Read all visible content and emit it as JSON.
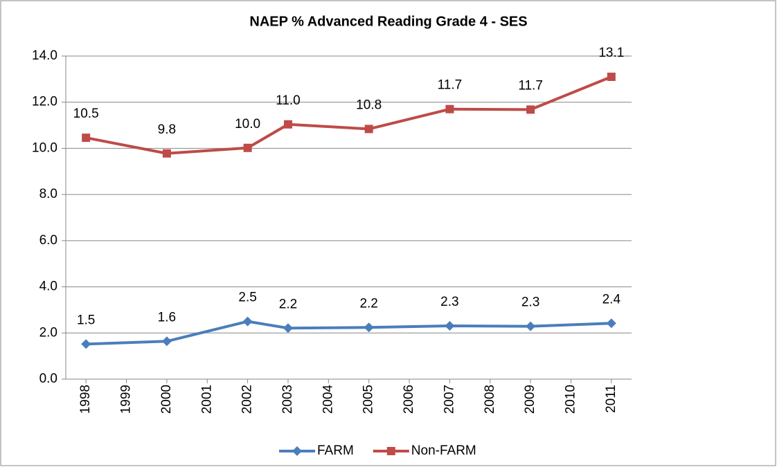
{
  "chart_data": {
    "type": "line",
    "title": "NAEP % Advanced Reading Grade 4 - SES",
    "x": [
      1998,
      2000,
      2002,
      2003,
      2005,
      2007,
      2009,
      2011
    ],
    "xlim": [
      1997.5,
      2011.5
    ],
    "xticks": [
      1998,
      1999,
      2000,
      2001,
      2002,
      2003,
      2004,
      2005,
      2006,
      2007,
      2008,
      2009,
      2010,
      2011
    ],
    "ylim": [
      0,
      14
    ],
    "yticks": [
      {
        "value": 0,
        "label": "0.0"
      },
      {
        "value": 2,
        "label": "2.0"
      },
      {
        "value": 4,
        "label": "4.0"
      },
      {
        "value": 6,
        "label": "6.0"
      },
      {
        "value": 8,
        "label": "8.0"
      },
      {
        "value": 10,
        "label": "10.0"
      },
      {
        "value": 12,
        "label": "12.0"
      },
      {
        "value": 14,
        "label": "14.0"
      }
    ],
    "grid": true,
    "legend": "bottom",
    "series": [
      {
        "name": "FARM",
        "color": "#4a7ebb",
        "marker": "diamond",
        "values": [
          1.52,
          1.64,
          2.5,
          2.21,
          2.24,
          2.31,
          2.29,
          2.42
        ],
        "value_labels": [
          "1.5",
          "1.6",
          "2.5",
          "2.2",
          "2.2",
          "2.3",
          "2.3",
          "2.4"
        ]
      },
      {
        "name": "Non-FARM",
        "color": "#be4b48",
        "marker": "square",
        "values": [
          10.46,
          9.78,
          10.02,
          11.04,
          10.84,
          11.7,
          11.68,
          13.1
        ],
        "value_labels": [
          "10.5",
          "9.8",
          "10.0",
          "11.0",
          "10.8",
          "11.7",
          "11.7",
          "13.1"
        ]
      }
    ]
  }
}
